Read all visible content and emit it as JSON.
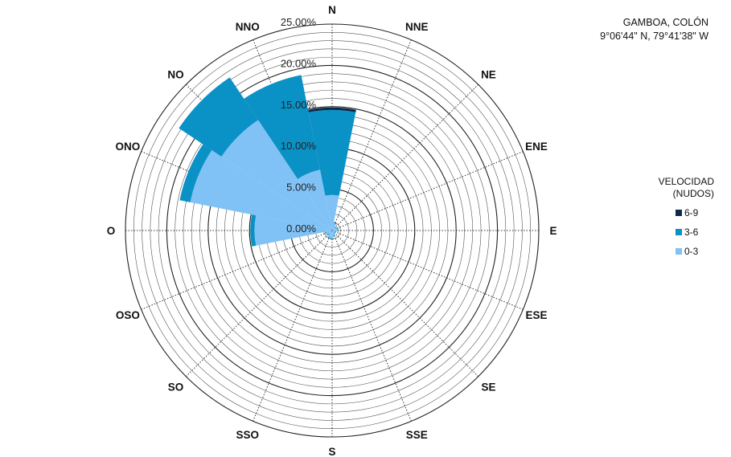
{
  "info": {
    "station": "GAMBOA, COLÓN",
    "coords": "9°06'44\" N, 79°41'38\" W"
  },
  "legend": {
    "title_line1": "VELOCIDAD",
    "title_line2": "(NUDOS)",
    "items": [
      {
        "label": "6-9",
        "color": "#0d2a4a"
      },
      {
        "label": "3-6",
        "color": "#0a91c5"
      },
      {
        "label": "0-3",
        "color": "#80c2f5"
      }
    ]
  },
  "chart_data": {
    "type": "polar-stacked-bar",
    "directions": [
      "N",
      "NNE",
      "NE",
      "ENE",
      "E",
      "ESE",
      "SE",
      "SSE",
      "S",
      "SSO",
      "SO",
      "OSO",
      "O",
      "ONO",
      "NO",
      "NNO"
    ],
    "radial_ticks": [
      "0.00%",
      "5.00%",
      "10.00%",
      "15.00%",
      "20.00%",
      "25.00%"
    ],
    "rmax": 25,
    "series": [
      {
        "name": "0-3",
        "color": "#80c2f5",
        "values": [
          4.3,
          0.9,
          0.5,
          0.6,
          0.7,
          0.4,
          0.4,
          0.6,
          1.0,
          0.9,
          0.6,
          0.8,
          9.4,
          17.5,
          16.1,
          7.5
        ]
      },
      {
        "name": "3-6",
        "color": "#0a91c5",
        "values": [
          10.3,
          0.1,
          0.1,
          0.1,
          0.1,
          0.1,
          0.1,
          0.1,
          0.1,
          0.1,
          0.1,
          0.1,
          0.5,
          1.3,
          6.2,
          11.7
        ]
      },
      {
        "name": "6-9",
        "color": "#0d2a4a",
        "values": [
          0.3,
          0,
          0,
          0,
          0,
          0,
          0,
          0,
          0,
          0,
          0,
          0,
          0,
          0,
          0,
          0
        ]
      }
    ]
  }
}
